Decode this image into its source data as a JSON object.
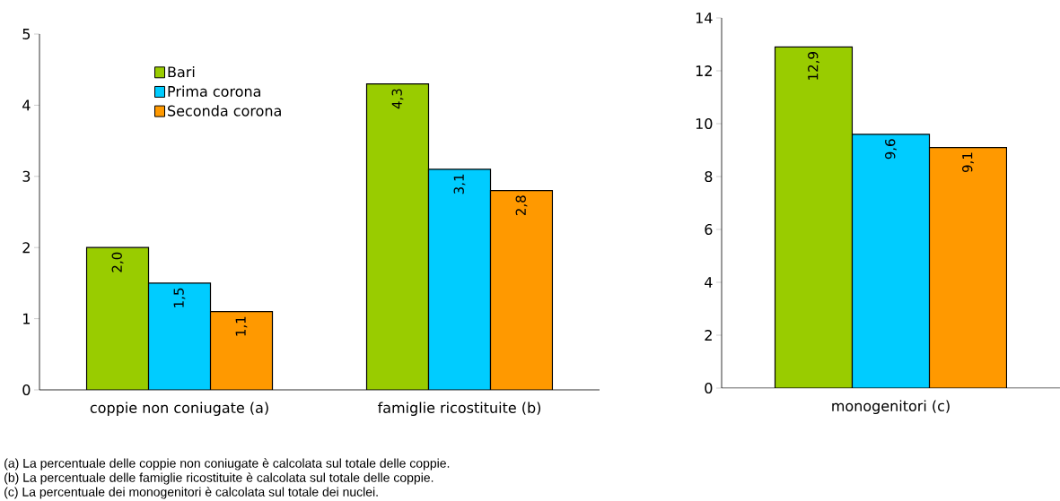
{
  "chart_data": [
    {
      "type": "bar",
      "categories": [
        "coppie non coniugate (a)",
        "famiglie ricostituite (b)"
      ],
      "ylim": [
        0,
        5
      ],
      "yticks": [
        0,
        1,
        2,
        3,
        4,
        5
      ],
      "legend": "top left",
      "series": [
        {
          "name": "Bari",
          "color": "#99cc00",
          "values": [
            2.0,
            4.3
          ],
          "value_labels": [
            "2,0",
            "4,3"
          ]
        },
        {
          "name": "Prima corona",
          "color": "#00ccff",
          "values": [
            1.5,
            3.1
          ],
          "value_labels": [
            "1,5",
            "3,1"
          ]
        },
        {
          "name": "Seconda corona",
          "color": "#ff9900",
          "values": [
            1.1,
            2.8
          ],
          "value_labels": [
            "1,1",
            "2,8"
          ]
        }
      ],
      "annotations": [
        "(a) La percentuale delle coppie non coniugate è calcolata sul totale delle coppie.",
        "(b) La percentuale delle famiglie ricostituite è calcolata sul totale delle coppie.",
        "(c) La percentuale dei monogenitori è calcolata sul totale dei nuclei."
      ]
    },
    {
      "type": "bar",
      "categories": [
        "monogenitori (c)"
      ],
      "ylim": [
        0,
        14
      ],
      "yticks": [
        0,
        2,
        4,
        6,
        8,
        10,
        12,
        14
      ],
      "series": [
        {
          "color": "#99cc00",
          "values": [
            12.9
          ],
          "value_labels": [
            "12,9"
          ]
        },
        {
          "color": "#00ccff",
          "values": [
            9.6
          ],
          "value_labels": [
            "9,6"
          ]
        },
        {
          "color": "#ff9900",
          "values": [
            9.1
          ],
          "value_labels": [
            "9,1"
          ]
        }
      ]
    }
  ]
}
